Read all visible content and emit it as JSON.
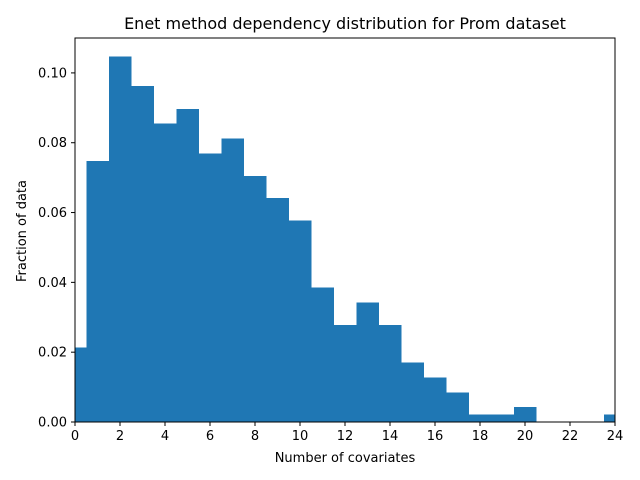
{
  "chart_data": {
    "type": "bar",
    "title": "Enet method dependency distribution for Prom dataset",
    "xlabel": "Number of covariates",
    "ylabel": "Fraction of data",
    "xlim": [
      0,
      24
    ],
    "ylim": [
      0,
      0.11
    ],
    "xticks": [
      0,
      2,
      4,
      6,
      8,
      10,
      12,
      14,
      16,
      18,
      20,
      22,
      24
    ],
    "xtick_labels": [
      "0",
      "2",
      "4",
      "6",
      "8",
      "10",
      "12",
      "14",
      "16",
      "18",
      "20",
      "22",
      "24"
    ],
    "yticks": [
      0.0,
      0.02,
      0.04,
      0.06,
      0.08,
      0.1
    ],
    "ytick_labels": [
      "0.00",
      "0.02",
      "0.04",
      "0.06",
      "0.08",
      "0.10"
    ],
    "bins": [
      {
        "x0": 0.0,
        "x1": 0.5,
        "value": 0.0213
      },
      {
        "x0": 0.5,
        "x1": 1.5,
        "value": 0.0748
      },
      {
        "x0": 1.5,
        "x1": 2.5,
        "value": 0.1047
      },
      {
        "x0": 2.5,
        "x1": 3.5,
        "value": 0.0962
      },
      {
        "x0": 3.5,
        "x1": 4.5,
        "value": 0.0855
      },
      {
        "x0": 4.5,
        "x1": 5.5,
        "value": 0.0897
      },
      {
        "x0": 5.5,
        "x1": 6.5,
        "value": 0.0769
      },
      {
        "x0": 6.5,
        "x1": 7.5,
        "value": 0.0812
      },
      {
        "x0": 7.5,
        "x1": 8.5,
        "value": 0.0705
      },
      {
        "x0": 8.5,
        "x1": 9.5,
        "value": 0.0641
      },
      {
        "x0": 9.5,
        "x1": 10.5,
        "value": 0.0577
      },
      {
        "x0": 10.5,
        "x1": 11.5,
        "value": 0.0385
      },
      {
        "x0": 11.5,
        "x1": 12.5,
        "value": 0.0278
      },
      {
        "x0": 12.5,
        "x1": 13.5,
        "value": 0.0342
      },
      {
        "x0": 13.5,
        "x1": 14.5,
        "value": 0.0278
      },
      {
        "x0": 14.5,
        "x1": 15.5,
        "value": 0.0171
      },
      {
        "x0": 15.5,
        "x1": 16.5,
        "value": 0.0128
      },
      {
        "x0": 16.5,
        "x1": 17.5,
        "value": 0.0085
      },
      {
        "x0": 17.5,
        "x1": 18.5,
        "value": 0.0021
      },
      {
        "x0": 18.5,
        "x1": 19.5,
        "value": 0.0021
      },
      {
        "x0": 19.5,
        "x1": 20.5,
        "value": 0.0043
      },
      {
        "x0": 23.5,
        "x1": 24.0,
        "value": 0.0021
      }
    ],
    "grid": false,
    "colors": {
      "bar": "#1f77b4",
      "axis": "#000000"
    }
  }
}
